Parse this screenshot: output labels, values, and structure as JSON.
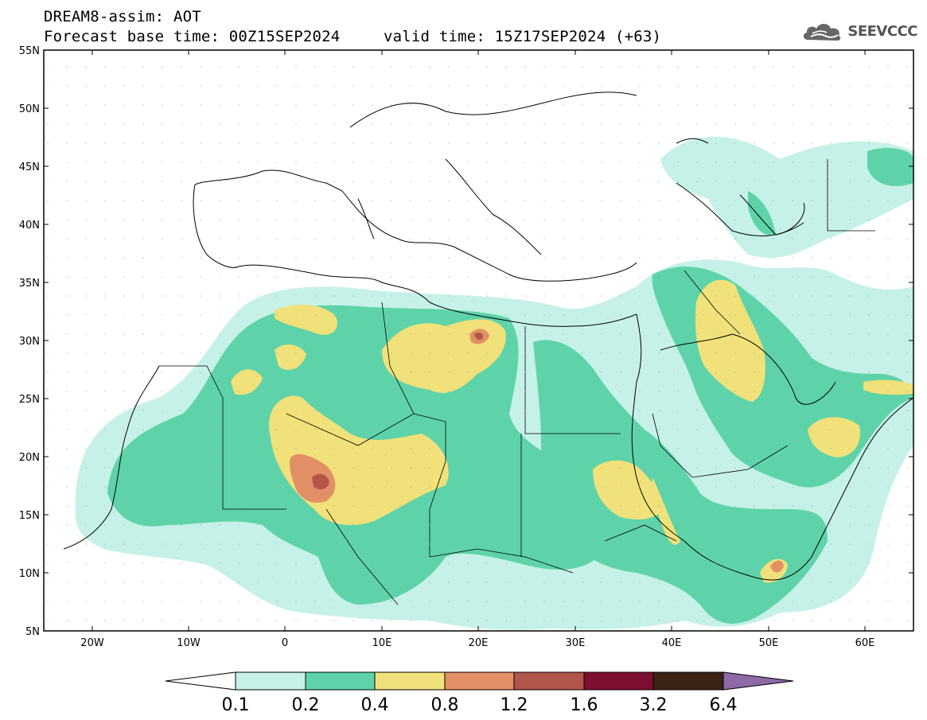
{
  "header": {
    "line1": "DREAM8-assim: AOT",
    "line2": "Forecast base time: 00Z15SEP2024",
    "line3": "valid time: 15Z17SEP2024 (+63)",
    "logo_text": "SEEVCCC"
  },
  "map": {
    "lon_range": [
      -25,
      65
    ],
    "lat_range": [
      5,
      55
    ],
    "lat_labels": [
      "5N",
      "10N",
      "15N",
      "20N",
      "25N",
      "30N",
      "35N",
      "40N",
      "45N",
      "50N",
      "55N"
    ],
    "lon_labels": [
      "20W",
      "10W",
      "0",
      "10E",
      "20E",
      "30E",
      "40E",
      "50E",
      "60E"
    ]
  },
  "colorbar": {
    "labels": [
      "0.1",
      "0.2",
      "0.4",
      "0.8",
      "1.2",
      "1.6",
      "3.2",
      "6.4"
    ],
    "colors": [
      "#c5f1e8",
      "#5ed3a9",
      "#f1e17a",
      "#e38f66",
      "#b2564a",
      "#7e0f30",
      "#3a2315",
      "#8e6aa8"
    ]
  }
}
